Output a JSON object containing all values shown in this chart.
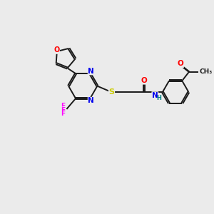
{
  "bg_color": "#ebebeb",
  "bond_color": "#1a1a1a",
  "bond_width": 1.4,
  "atom_colors": {
    "O": "#ff0000",
    "N": "#0000ee",
    "S": "#cccc00",
    "F": "#ff00ff",
    "H": "#008080",
    "C": "#1a1a1a"
  }
}
